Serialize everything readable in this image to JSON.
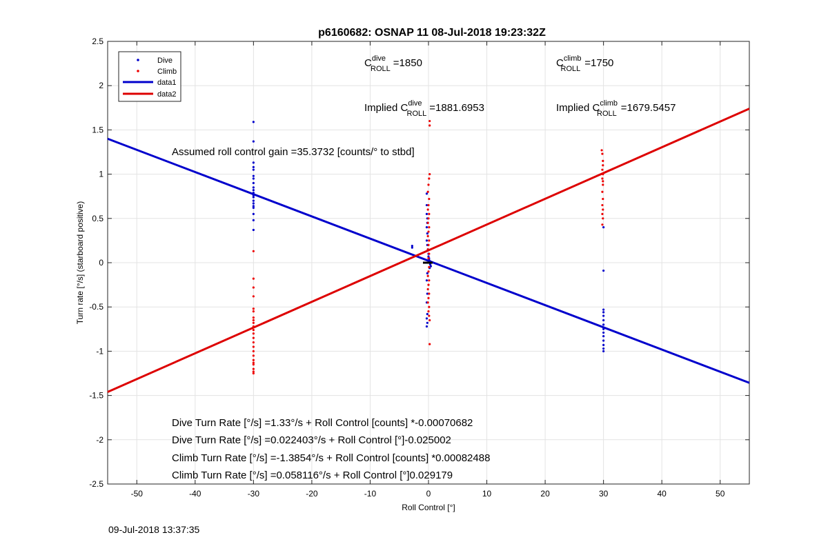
{
  "chart_data": {
    "type": "scatter",
    "title": "p6160682: OSNAP 11 08-Jul-2018 19:23:32Z",
    "xlabel": "Roll Control [°]",
    "ylabel": "Turn rate [°/s] (starboard positive)",
    "xlim": [
      -55,
      55
    ],
    "ylim": [
      -2.5,
      2.5
    ],
    "xticks": [
      -50,
      -40,
      -30,
      -20,
      -10,
      0,
      10,
      20,
      30,
      40,
      50
    ],
    "yticks": [
      -2.5,
      -2,
      -1.5,
      -1,
      -0.5,
      0,
      0.5,
      1,
      1.5,
      2,
      2.5
    ],
    "xtick_labels": [
      "-50",
      "-40",
      "-30",
      "-20",
      "-10",
      "0",
      "10",
      "20",
      "30",
      "40",
      "50"
    ],
    "ytick_labels": [
      "-2.5",
      "-2",
      "-1.5",
      "-1",
      "-0.5",
      "0",
      "0.5",
      "1",
      "1.5",
      "2",
      "2.5"
    ],
    "grid": true,
    "legend_position": "top-left",
    "series": [
      {
        "name": "Dive",
        "kind": "points",
        "color": "#0000cc",
        "points": [
          [
            -30,
            1.59
          ],
          [
            -30,
            1.37
          ],
          [
            -30,
            1.13
          ],
          [
            -30,
            1.08
          ],
          [
            -30,
            1.05
          ],
          [
            -30,
            0.98
          ],
          [
            -30,
            0.95
          ],
          [
            -30,
            0.9
          ],
          [
            -30,
            0.85
          ],
          [
            -30,
            0.82
          ],
          [
            -30,
            0.79
          ],
          [
            -30,
            0.76
          ],
          [
            -30,
            0.74
          ],
          [
            -30,
            0.7
          ],
          [
            -30,
            0.67
          ],
          [
            -30,
            0.64
          ],
          [
            -30,
            0.62
          ],
          [
            -30,
            0.55
          ],
          [
            -30,
            0.48
          ],
          [
            -30,
            0.37
          ],
          [
            -2.8,
            0.19
          ],
          [
            -2.8,
            0.17
          ],
          [
            -0.3,
            0.78
          ],
          [
            -0.3,
            0.65
          ],
          [
            -0.3,
            0.55
          ],
          [
            -0.2,
            0.5
          ],
          [
            -0.2,
            0.45
          ],
          [
            -0.3,
            0.4
          ],
          [
            -0.2,
            0.33
          ],
          [
            -0.3,
            0.25
          ],
          [
            -0.2,
            0.2
          ],
          [
            -0.1,
            0.15
          ],
          [
            0,
            0.1
          ],
          [
            0.1,
            0.05
          ],
          [
            0.2,
            0.02
          ],
          [
            0.3,
            -0.02
          ],
          [
            0.4,
            -0.04
          ],
          [
            0.2,
            -0.06
          ],
          [
            0.1,
            0.03
          ],
          [
            0,
            0.07
          ],
          [
            -0.2,
            -0.12
          ],
          [
            -0.3,
            -0.2
          ],
          [
            -0.2,
            -0.35
          ],
          [
            -0.3,
            -0.45
          ],
          [
            -0.2,
            -0.58
          ],
          [
            -0.3,
            -0.63
          ],
          [
            -0.2,
            -0.68
          ],
          [
            -0.3,
            -0.72
          ],
          [
            30,
            0.4
          ],
          [
            30,
            -0.09
          ],
          [
            30,
            -0.53
          ],
          [
            30,
            -0.56
          ],
          [
            30,
            -0.6
          ],
          [
            30,
            -0.65
          ],
          [
            30,
            -0.7
          ],
          [
            30,
            -0.75
          ],
          [
            30,
            -0.79
          ],
          [
            30,
            -0.83
          ],
          [
            30,
            -0.88
          ],
          [
            30,
            -0.93
          ],
          [
            30,
            -0.97
          ],
          [
            30,
            -1.0
          ]
        ]
      },
      {
        "name": "Climb",
        "kind": "points",
        "color": "#ee0000",
        "points": [
          [
            -30,
            0.13
          ],
          [
            -30,
            -0.18
          ],
          [
            -30,
            -0.28
          ],
          [
            -30,
            -0.38
          ],
          [
            -30,
            -0.52
          ],
          [
            -30,
            -0.55
          ],
          [
            -30,
            -0.62
          ],
          [
            -30,
            -0.65
          ],
          [
            -30,
            -0.68
          ],
          [
            -30,
            -0.72
          ],
          [
            -30,
            -0.76
          ],
          [
            -30,
            -0.8
          ],
          [
            -30,
            -0.85
          ],
          [
            -30,
            -0.9
          ],
          [
            -30,
            -0.95
          ],
          [
            -30,
            -1.0
          ],
          [
            -30,
            -1.05
          ],
          [
            -30,
            -1.1
          ],
          [
            -30,
            -1.13
          ],
          [
            -30,
            -1.15
          ],
          [
            -30,
            -1.2
          ],
          [
            -30,
            -1.23
          ],
          [
            -30,
            -1.25
          ],
          [
            0.2,
            1.6
          ],
          [
            0.2,
            1.55
          ],
          [
            0.2,
            1.0
          ],
          [
            0.1,
            0.95
          ],
          [
            0,
            0.88
          ],
          [
            -0.1,
            0.8
          ],
          [
            0.1,
            0.72
          ],
          [
            0,
            0.65
          ],
          [
            -0.1,
            0.6
          ],
          [
            0.1,
            0.55
          ],
          [
            0,
            0.5
          ],
          [
            -0.1,
            0.45
          ],
          [
            0.1,
            0.4
          ],
          [
            0,
            0.35
          ],
          [
            -0.1,
            0.3
          ],
          [
            0.1,
            0.25
          ],
          [
            0,
            0.2
          ],
          [
            -0.1,
            0.15
          ],
          [
            0.1,
            0.1
          ],
          [
            0,
            0.05
          ],
          [
            -0.1,
            0.0
          ],
          [
            0.1,
            -0.05
          ],
          [
            0,
            -0.1
          ],
          [
            -0.1,
            -0.15
          ],
          [
            0.1,
            -0.2
          ],
          [
            0,
            -0.25
          ],
          [
            -0.1,
            -0.3
          ],
          [
            0.1,
            -0.35
          ],
          [
            0,
            -0.4
          ],
          [
            -0.1,
            -0.45
          ],
          [
            0.1,
            -0.5
          ],
          [
            0,
            -0.55
          ],
          [
            0.1,
            -0.6
          ],
          [
            0.2,
            -0.65
          ],
          [
            0.2,
            -0.92
          ],
          [
            29.7,
            1.27
          ],
          [
            29.8,
            1.23
          ],
          [
            29.9,
            1.15
          ],
          [
            29.9,
            1.1
          ],
          [
            29.8,
            1.05
          ],
          [
            29.9,
            1.0
          ],
          [
            29.8,
            0.95
          ],
          [
            29.9,
            0.92
          ],
          [
            29.9,
            0.88
          ],
          [
            29.8,
            0.8
          ],
          [
            29.9,
            0.72
          ],
          [
            29.8,
            0.65
          ],
          [
            29.9,
            0.6
          ],
          [
            29.8,
            0.55
          ],
          [
            29.9,
            0.5
          ],
          [
            29.8,
            0.43
          ]
        ]
      },
      {
        "name": "data1",
        "kind": "line",
        "color": "#0000cc",
        "points": [
          [
            -55,
            1.4
          ],
          [
            55,
            -1.357
          ]
        ]
      },
      {
        "name": "data2",
        "kind": "line",
        "color": "#dd0000",
        "points": [
          [
            -55,
            -1.46
          ],
          [
            55,
            1.74
          ]
        ]
      }
    ],
    "annotations": {
      "c_roll_dive": {
        "prefix": "C",
        "sup": "dive",
        "sub": "ROLL",
        "value": "=1850"
      },
      "c_roll_climb": {
        "prefix": "C",
        "sup": "climb",
        "sub": "ROLL",
        "value": "=1750"
      },
      "implied_dive": {
        "prefix": "Implied C",
        "sup": "dive",
        "sub": "ROLL",
        "value": "=1881.6953"
      },
      "implied_climb": {
        "prefix": "Implied C",
        "sup": "climb",
        "sub": "ROLL",
        "value": "=1679.5457"
      },
      "gain": "Assumed roll control gain =35.3732 [counts/° to stbd]",
      "eq1": "Dive Turn Rate [°/s] =1.33°/s + Roll Control [counts] *-0.00070682",
      "eq2": "Dive Turn Rate [°/s] =0.022403°/s + Roll Control [°]-0.025002",
      "eq3": "Climb Turn Rate [°/s] =-1.3854°/s + Roll Control [counts] *0.00082488",
      "eq4": "Climb Turn Rate [°/s] =0.058116°/s + Roll Control [°]0.029179"
    }
  },
  "footer": {
    "timestamp": "09-Jul-2018 13:37:35"
  }
}
